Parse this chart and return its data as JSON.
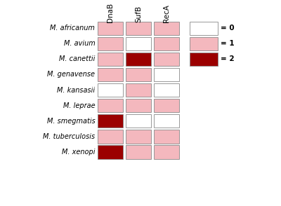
{
  "species": [
    "M. africanum",
    "M. avium",
    "M. canettii",
    "M. genavense",
    "M. kansasii",
    "M. leprae",
    "M. smegmatis",
    "M. tuberculosis",
    "M. xenopi"
  ],
  "columns": [
    "DnaB",
    "SufB",
    "RecA"
  ],
  "values": [
    [
      1,
      1,
      1
    ],
    [
      1,
      0,
      1
    ],
    [
      1,
      2,
      1
    ],
    [
      1,
      1,
      0
    ],
    [
      0,
      1,
      0
    ],
    [
      1,
      1,
      1
    ],
    [
      2,
      0,
      0
    ],
    [
      1,
      1,
      1
    ],
    [
      2,
      1,
      1
    ]
  ],
  "color_map": {
    "0": "#FFFFFF",
    "1": "#F4B8BE",
    "2": "#9B0000"
  },
  "border_color": "#888888",
  "legend_labels": [
    "= 0",
    "= 1",
    "= 2"
  ],
  "legend_colors": [
    "#FFFFFF",
    "#F4B8BE",
    "#9B0000"
  ],
  "col_labels": [
    "DnaB",
    "SufB",
    "RecA"
  ],
  "background_color": "#FFFFFF",
  "fig_width": 4.0,
  "fig_height": 2.94
}
